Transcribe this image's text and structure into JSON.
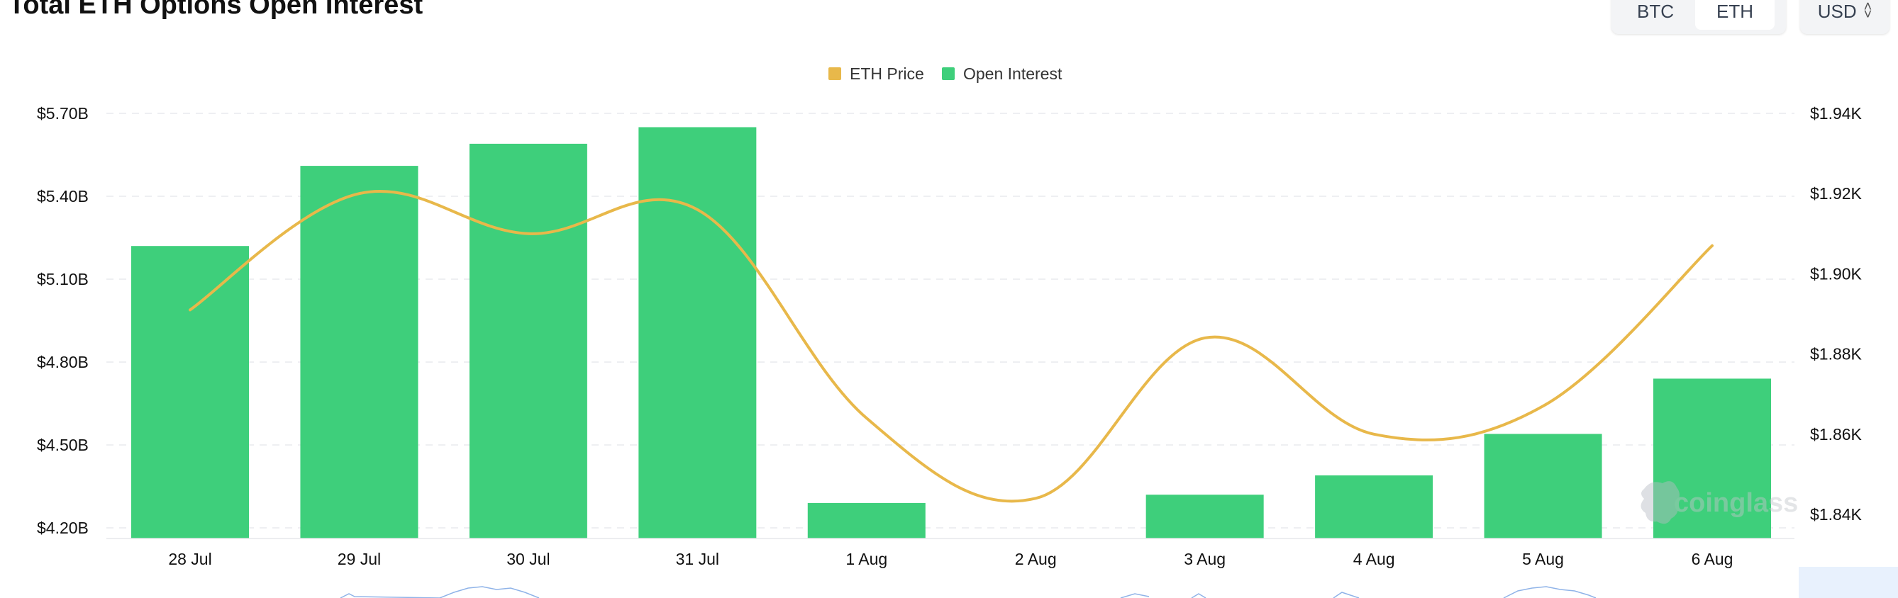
{
  "header": {
    "title": "Total ETH Options Open Interest",
    "asset_tabs": [
      "BTC",
      "ETH"
    ],
    "active_asset": "ETH",
    "currency": "USD"
  },
  "watermark": "coinglass",
  "colors": {
    "bar": "#3ecf7b",
    "line": "#e8b84a",
    "grid": "#e9eaee"
  },
  "chart_data": {
    "type": "bar",
    "title": "",
    "categories": [
      "28 Jul",
      "29 Jul",
      "30 Jul",
      "31 Jul",
      "1 Aug",
      "2 Aug",
      "3 Aug",
      "4 Aug",
      "5 Aug",
      "6 Aug"
    ],
    "series": [
      {
        "name": "Open Interest",
        "type": "bar",
        "axis": "left",
        "values": [
          5.22,
          5.51,
          5.59,
          5.65,
          4.29,
          4.16,
          4.32,
          4.39,
          4.54,
          4.74
        ]
      },
      {
        "name": "ETH Price",
        "type": "line",
        "axis": "right",
        "values": [
          1891,
          1920,
          1910,
          1916,
          1864,
          1844,
          1884,
          1860,
          1867,
          1907
        ]
      }
    ],
    "left_axis": {
      "ticks": [
        "$5.70B",
        "$5.40B",
        "$5.10B",
        "$4.80B",
        "$4.50B",
        "$4.20B"
      ],
      "tick_values": [
        5.7,
        5.4,
        5.1,
        4.8,
        4.5,
        4.2
      ],
      "ylim": [
        4.1,
        5.7
      ]
    },
    "right_axis": {
      "ticks": [
        "$1.94K",
        "$1.92K",
        "$1.90K",
        "$1.88K",
        "$1.86K",
        "$1.84K"
      ],
      "tick_values": [
        1940,
        1920,
        1900,
        1880,
        1860,
        1840
      ],
      "ylim": [
        1840,
        1940
      ]
    },
    "legend": {
      "placement": "top-center",
      "items": [
        {
          "name": "ETH Price",
          "color": "#e8b84a"
        },
        {
          "name": "Open Interest",
          "color": "#3ecf7b"
        }
      ]
    },
    "grid": true
  }
}
